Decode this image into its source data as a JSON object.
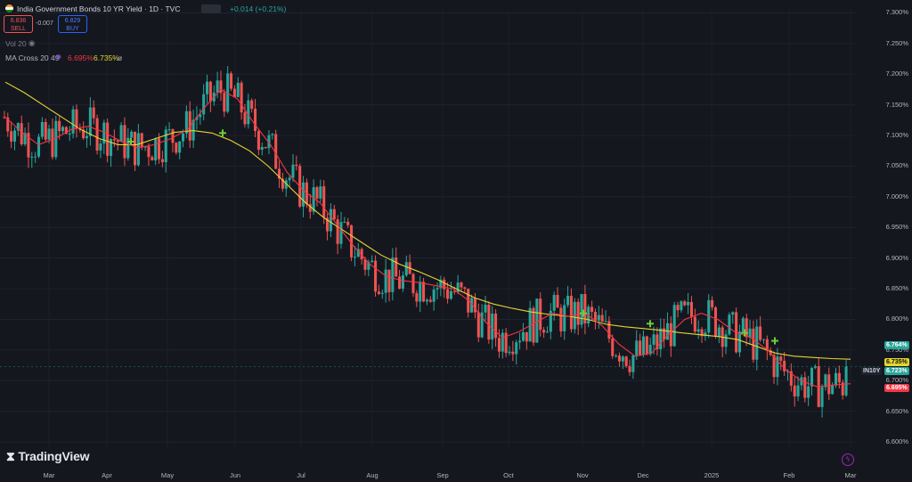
{
  "header": {
    "title": "India Government Bonds 10 YR Yield · 1D · TVC",
    "change": "+0.014 (+0.21%)",
    "sell_price": "6.836",
    "sell_label": "SELL",
    "spread": "-0.007",
    "buy_price": "6.829",
    "buy_label": "BUY",
    "vol_label": "Vol 20",
    "ma_label": "MA Cross 20 49",
    "ma_fast_value": "6.695%",
    "ma_slow_value": "6.735%",
    "ma_extra": "ø"
  },
  "price_axis": {
    "ticks": [
      "7.300%",
      "7.250%",
      "7.200%",
      "7.150%",
      "7.100%",
      "7.050%",
      "7.000%",
      "6.950%",
      "6.900%",
      "6.850%",
      "6.800%",
      "6.750%",
      "6.700%",
      "6.650%",
      "6.600%"
    ],
    "symbol_tag": "IN10Y",
    "last_price": "6.723%",
    "badge_green": "6.764%",
    "badge_yellow": "6.735%",
    "badge_red": "6.695%"
  },
  "time_axis": {
    "ticks": [
      "Mar",
      "Apr",
      "May",
      "Jun",
      "Jul",
      "Aug",
      "Sep",
      "Oct",
      "Nov",
      "Dec",
      "2025",
      "Feb",
      "Mar"
    ]
  },
  "branding": {
    "logo_text": "TradingView"
  },
  "colors": {
    "up": "#26a69a",
    "down": "#ef5350",
    "ma_fast": "#f23645",
    "ma_slow": "#e5d532",
    "cross": "#6ccf3a",
    "bg": "#15171f"
  },
  "chart_data": {
    "type": "candlestick",
    "title": "India Government Bonds 10 YR Yield",
    "ylim": [
      6.59,
      7.305
    ],
    "x_ticks": [
      "Mar",
      "Apr",
      "May",
      "Jun",
      "Jul",
      "Aug",
      "Sep",
      "Oct",
      "Nov",
      "Dec",
      "2025",
      "Feb",
      "Mar"
    ],
    "series": [
      {
        "name": "MA 20",
        "values": [
          7.13,
          7.105,
          7.085,
          7.095,
          7.11,
          7.115,
          7.105,
          7.09,
          7.08,
          7.085,
          7.095,
          7.11,
          7.145,
          7.175,
          7.16,
          7.12,
          7.085,
          7.04,
          7.01,
          6.99,
          6.955,
          6.92,
          6.89,
          6.87,
          6.863,
          6.86,
          6.855,
          6.85,
          6.83,
          6.795,
          6.77,
          6.78,
          6.795,
          6.81,
          6.805,
          6.81,
          6.79,
          6.76,
          6.74,
          6.745,
          6.775,
          6.8,
          6.81,
          6.8,
          6.78,
          6.77,
          6.75,
          6.72,
          6.7,
          6.69,
          6.693,
          6.695
        ]
      },
      {
        "name": "MA 49",
        "values": [
          7.187,
          7.17,
          7.15,
          7.13,
          7.11,
          7.095,
          7.085,
          7.085,
          7.095,
          7.105,
          7.108,
          7.104,
          7.092,
          7.075,
          7.05,
          7.02,
          6.99,
          6.965,
          6.945,
          6.925,
          6.905,
          6.89,
          6.878,
          6.865,
          6.85,
          6.835,
          6.825,
          6.818,
          6.812,
          6.808,
          6.805,
          6.8,
          6.792,
          6.788,
          6.785,
          6.782,
          6.778,
          6.775,
          6.772,
          6.767,
          6.756,
          6.745,
          6.74,
          6.738,
          6.736,
          6.735
        ]
      }
    ],
    "last_close": 6.723
  }
}
